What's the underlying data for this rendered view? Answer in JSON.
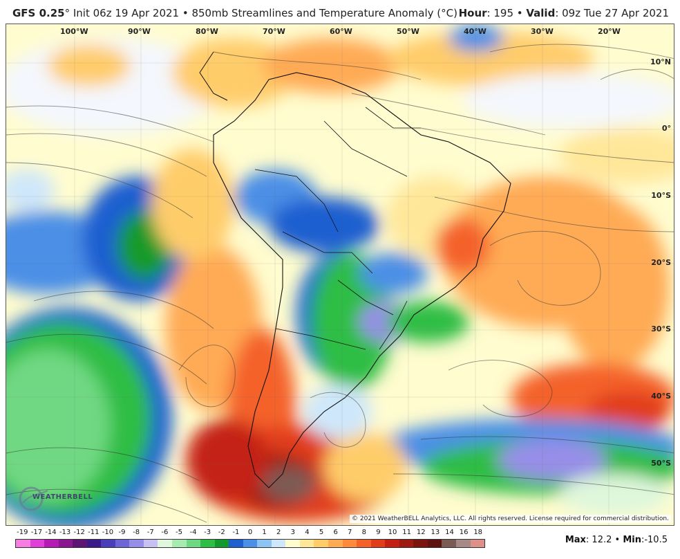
{
  "header": {
    "model": "GFS 0.25",
    "degree": "°",
    "init": " Init 06z 19 Apr 2021 • 850mb Streamlines and Temperature Anomaly (°C)",
    "hour_label": "Hour",
    "hour_value": ": 195 • ",
    "valid_label": "Valid",
    "valid_value": ": 09z Tue 27 Apr 2021"
  },
  "map": {
    "lon_labels": [
      "100°W",
      "90°W",
      "80°W",
      "70°W",
      "60°W",
      "50°W",
      "40°W",
      "30°W",
      "20°W"
    ],
    "lat_labels": [
      "10°N",
      "0°",
      "10°S",
      "20°S",
      "30°S",
      "40°S",
      "50°S"
    ],
    "copyright": "© 2021 WeatherBELL Analytics, LLC. All rights reserved. License required for commercial distribution.",
    "logo_text": "WEATHERBELL"
  },
  "colorbar": {
    "labels": [
      "-19",
      "-17",
      "-14",
      "-13",
      "-12",
      "-11",
      "-10",
      "-9",
      "-8",
      "-7",
      "-6",
      "-5",
      "-4",
      "-3",
      "-2",
      "-1",
      "0",
      "1",
      "2",
      "3",
      "4",
      "5",
      "6",
      "7",
      "8",
      "9",
      "10",
      "11",
      "12",
      "13",
      "14",
      "16",
      "18"
    ],
    "colors": [
      "#f57ee0",
      "#e040d8",
      "#b61ab5",
      "#8a1690",
      "#5d1474",
      "#3a1a88",
      "#4a3fb8",
      "#6c66d6",
      "#978ee8",
      "#c7c0f2",
      "#dff7dc",
      "#a6ecb0",
      "#6fd882",
      "#2ebd45",
      "#139a2c",
      "#1f5fd0",
      "#4b8fe6",
      "#8ec4f3",
      "#cfe7fb",
      "#fffccf",
      "#ffe79a",
      "#ffcc6a",
      "#ffaa55",
      "#ff8a3d",
      "#f4622a",
      "#e23d1b",
      "#c42112",
      "#9c1a0f",
      "#7a140c",
      "#5e1310",
      "#7d5b55",
      "#a58a85",
      "#e0908a"
    ]
  },
  "stats": {
    "max_label": "Max",
    "max_value": ": 12.2 • ",
    "min_label": "Min",
    "min_value": ":-10.5"
  }
}
